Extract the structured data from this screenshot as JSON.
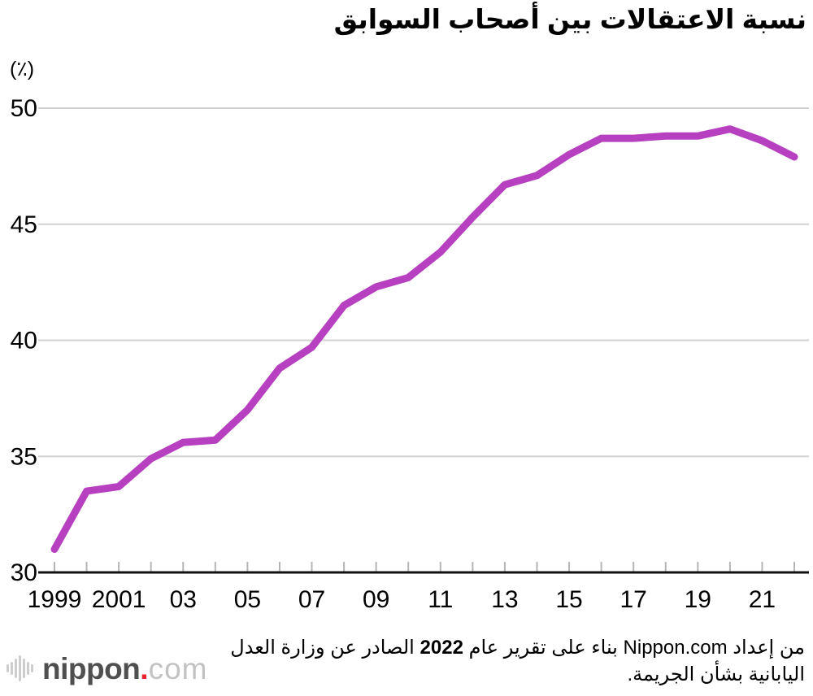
{
  "header": {
    "title": "نسبة الاعتقالات بين أصحاب السوابق"
  },
  "axis_unit": "(٪)",
  "footer": {
    "source_line1_before_year": "من إعداد Nippon.com بناء على تقرير عام",
    "source_year": "2022",
    "source_line1_after_year": "الصادر عن وزارة العدل",
    "source_line2": "اليابانية بشأن الجريمة.",
    "logo_name": "nippon",
    "logo_dot": ".",
    "logo_tld": "com"
  },
  "colors": {
    "line": "#b640c0",
    "grid": "#d2d2d2",
    "tick": "#b5b5b5",
    "axis": "#111111",
    "text": "#000000",
    "logo_dark": "#4f4f4f",
    "logo_light": "#c2c2c2",
    "logo_dot": "#e8242a",
    "wave_icon": "#cdcdcd"
  },
  "chart_data": {
    "type": "line",
    "title": "نسبة الاعتقالات بين أصحاب السوابق",
    "ylabel": "(٪)",
    "x": [
      1999,
      2000,
      2001,
      2002,
      2003,
      2004,
      2005,
      2006,
      2007,
      2008,
      2009,
      2010,
      2011,
      2012,
      2013,
      2014,
      2015,
      2016,
      2017,
      2018,
      2019,
      2020,
      2021,
      2022
    ],
    "values": [
      31.0,
      33.5,
      33.7,
      34.9,
      35.6,
      35.7,
      37.0,
      38.8,
      39.7,
      41.5,
      42.3,
      42.7,
      43.8,
      45.3,
      46.7,
      47.1,
      48.0,
      48.7,
      48.7,
      48.8,
      48.8,
      49.1,
      48.6,
      47.9
    ],
    "ylim": [
      30,
      50
    ],
    "yticks": [
      30,
      35,
      40,
      45,
      50
    ],
    "xtick_labels": [
      "1999",
      "2001",
      "03",
      "05",
      "07",
      "09",
      "11",
      "13",
      "15",
      "17",
      "19",
      "21"
    ],
    "xtick_label_step": 2,
    "grid": true,
    "legend": false,
    "source_note": "من إعداد Nippon.com بناء على تقرير عام 2022 الصادر عن وزارة العدل اليابانية بشأن الجريمة."
  }
}
